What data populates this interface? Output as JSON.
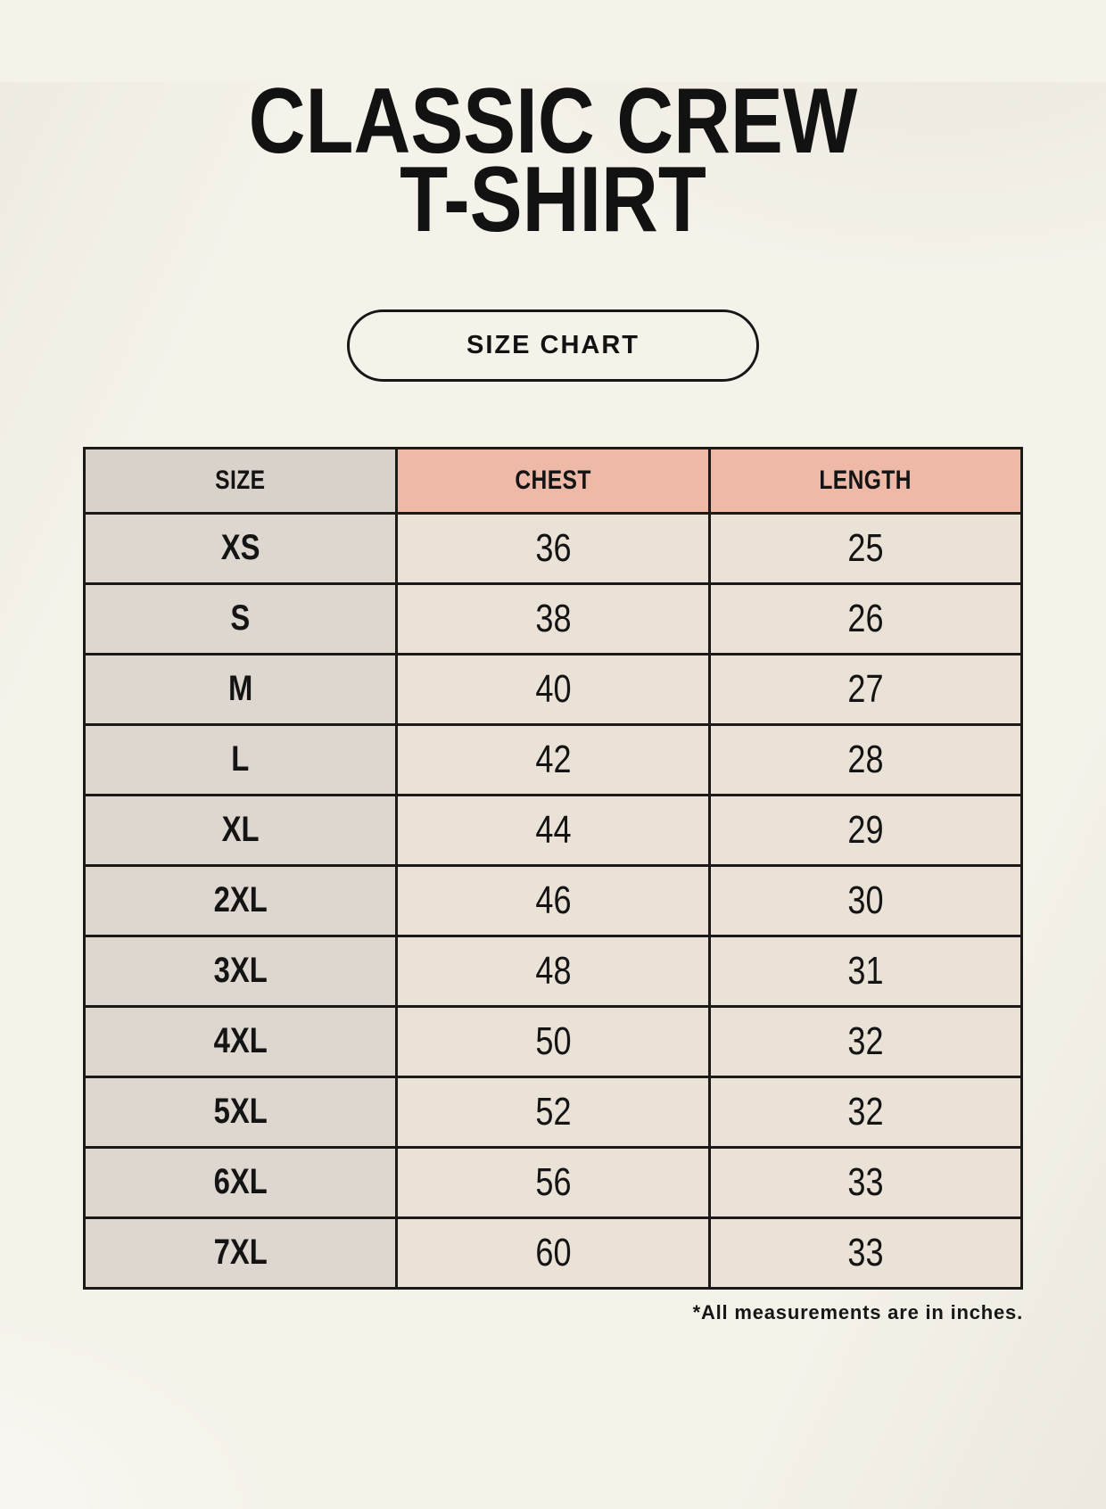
{
  "header": {
    "title_line1": "CLASSIC CREW",
    "title_line2": "T-SHIRT",
    "size_chart_button_label": "SIZE CHART"
  },
  "table": {
    "columns": [
      "SIZE",
      "CHEST",
      "LENGTH"
    ],
    "rows": [
      {
        "size": "XS",
        "chest": "36",
        "length": "25"
      },
      {
        "size": "S",
        "chest": "38",
        "length": "26"
      },
      {
        "size": "M",
        "chest": "40",
        "length": "27"
      },
      {
        "size": "L",
        "chest": "42",
        "length": "28"
      },
      {
        "size": "XL",
        "chest": "44",
        "length": "29"
      },
      {
        "size": "2XL",
        "chest": "46",
        "length": "30"
      },
      {
        "size": "3XL",
        "chest": "48",
        "length": "31"
      },
      {
        "size": "4XL",
        "chest": "50",
        "length": "32"
      },
      {
        "size": "5XL",
        "chest": "52",
        "length": "32"
      },
      {
        "size": "6XL",
        "chest": "56",
        "length": "33"
      },
      {
        "size": "7XL",
        "chest": "60",
        "length": "33"
      }
    ]
  },
  "footnote": "*All measurements are in inches.",
  "colors": {
    "page_background": "#f5f2ea",
    "accent_header": "#eeb9a7",
    "size_header": "#d9d2cb",
    "size_column": "#ded7d0",
    "value_cell": "#eae2d7",
    "border": "#1b1a19",
    "text": "#141414"
  }
}
